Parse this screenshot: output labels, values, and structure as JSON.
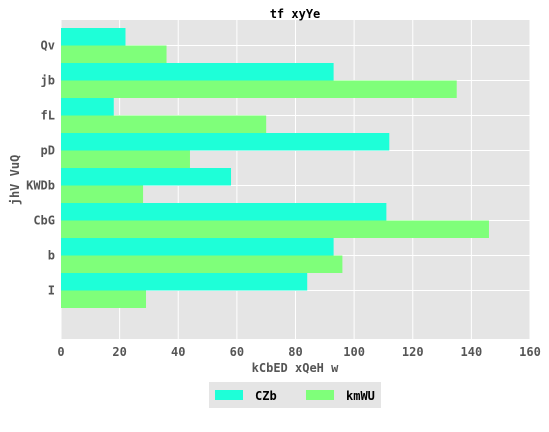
{
  "chart_data": {
    "type": "bar",
    "orientation": "horizontal",
    "title": "tf xyYe",
    "xlabel": "kCbED  xQeH w",
    "ylabel": "jhV  VuQ",
    "categories": [
      "Qv",
      "jb",
      "fL",
      "pD",
      "KWDb",
      "CbG",
      "b",
      "I"
    ],
    "series": [
      {
        "name": "CZb",
        "color": "#1effd8",
        "values": [
          22,
          93,
          18,
          112,
          58,
          111,
          93,
          84
        ]
      },
      {
        "name": "kmWU",
        "color": "#7fff7a",
        "values": [
          36,
          135,
          70,
          44,
          28,
          146,
          96,
          29
        ]
      }
    ],
    "xlim": [
      0,
      160
    ],
    "xticks": [
      0,
      20,
      40,
      60,
      80,
      100,
      120,
      140,
      160
    ],
    "grid": true,
    "legend_position": "bottom-center",
    "background_color": "#e5e5e5",
    "grid_color": "#ffffff"
  }
}
